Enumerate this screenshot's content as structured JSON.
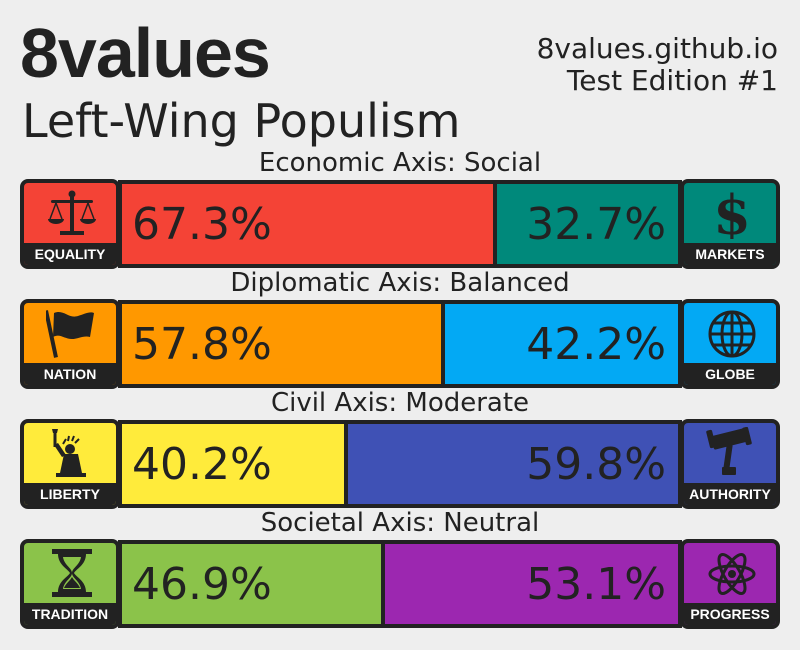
{
  "header": {
    "title": "8values",
    "ideology": "Left-Wing Populism",
    "site": "8values.github.io",
    "edition": "Test Edition #1"
  },
  "axes": [
    {
      "label": "Economic Axis: Social",
      "left": {
        "name": "EQUALITY",
        "icon": "scales-icon",
        "value_text": "67.3%",
        "color": "#f44336"
      },
      "right": {
        "name": "MARKETS",
        "icon": "dollar-icon",
        "value_text": "32.7%",
        "color": "#00897b"
      }
    },
    {
      "label": "Diplomatic Axis: Balanced",
      "left": {
        "name": "NATION",
        "icon": "flag-icon",
        "value_text": "57.8%",
        "color": "#ff9800"
      },
      "right": {
        "name": "GLOBE",
        "icon": "globe-icon",
        "value_text": "42.2%",
        "color": "#03a9f4"
      }
    },
    {
      "label": "Civil Axis: Moderate",
      "left": {
        "name": "LIBERTY",
        "icon": "statue-of-liberty-icon",
        "value_text": "40.2%",
        "color": "#ffeb3b"
      },
      "right": {
        "name": "AUTHORITY",
        "icon": "gavel-icon",
        "value_text": "59.8%",
        "color": "#3f51b5"
      }
    },
    {
      "label": "Societal Axis: Neutral",
      "left": {
        "name": "TRADITION",
        "icon": "hourglass-icon",
        "value_text": "46.9%",
        "color": "#8bc34a"
      },
      "right": {
        "name": "PROGRESS",
        "icon": "atom-icon",
        "value_text": "53.1%",
        "color": "#9c27b0"
      }
    }
  ],
  "chart_data": {
    "type": "bar",
    "stacked": true,
    "orientation": "horizontal",
    "categories": [
      "Economic Axis: Social",
      "Diplomatic Axis: Balanced",
      "Civil Axis: Moderate",
      "Societal Axis: Neutral"
    ],
    "series": [
      {
        "name": "left",
        "values": [
          67.3,
          57.8,
          40.2,
          46.9
        ]
      },
      {
        "name": "right",
        "values": [
          32.7,
          42.2,
          59.8,
          53.1
        ]
      }
    ],
    "xlim": [
      0,
      100
    ],
    "grid": false
  }
}
